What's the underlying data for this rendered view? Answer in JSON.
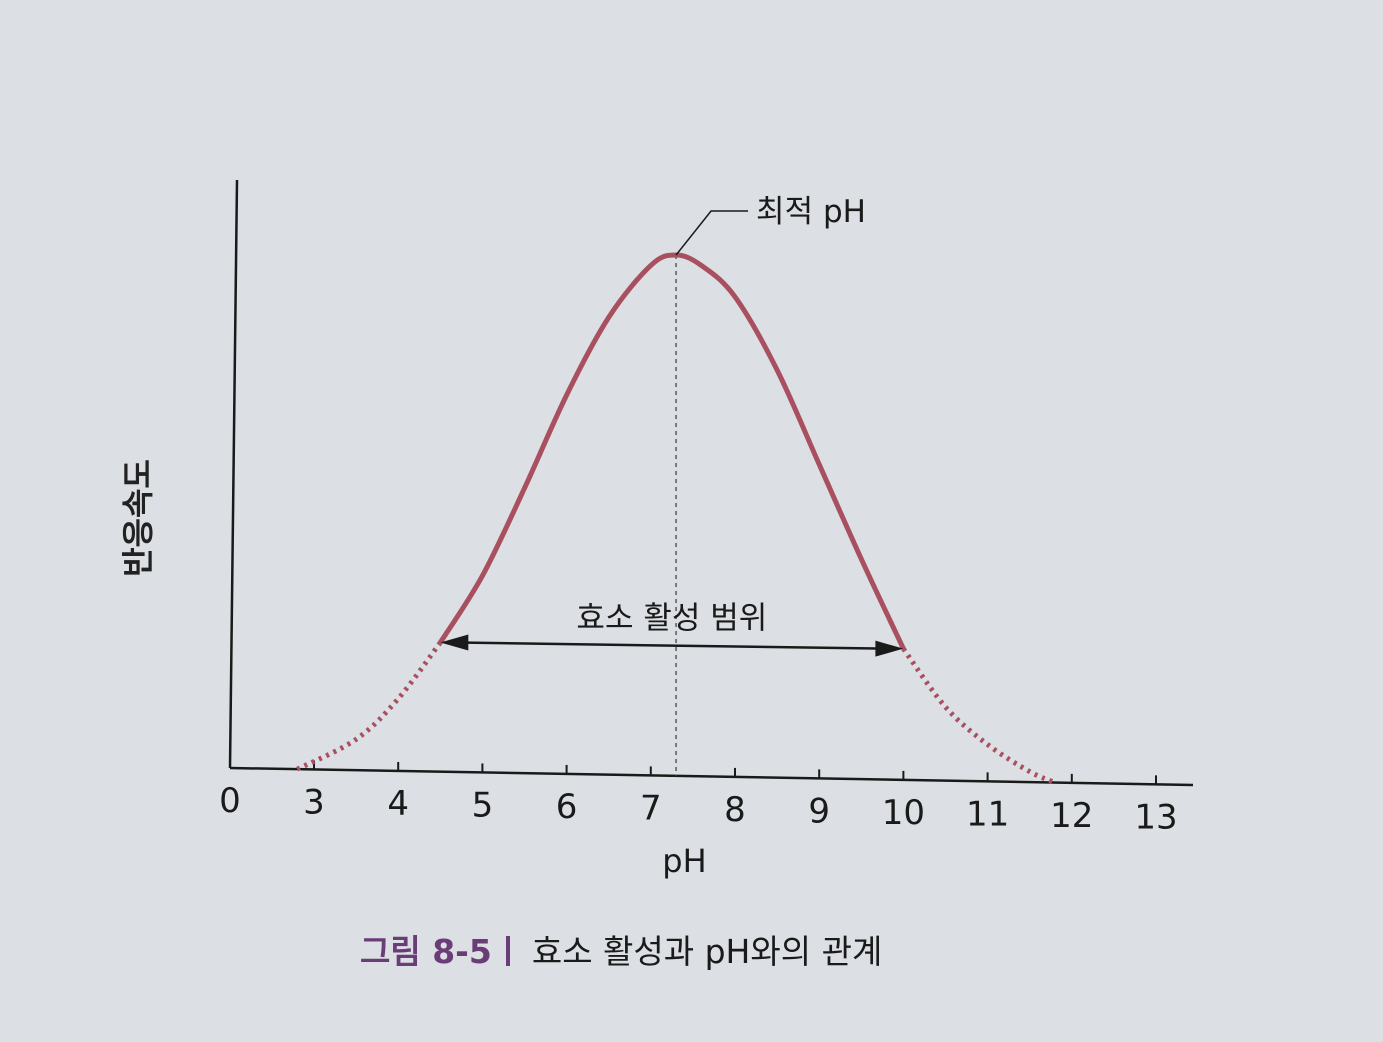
{
  "chart_data": {
    "type": "line",
    "xlabel": "pH",
    "ylabel": "반응속도",
    "x_ticks": [
      "0",
      "3",
      "4",
      "5",
      "6",
      "7",
      "8",
      "9",
      "10",
      "11",
      "12",
      "13"
    ],
    "series": [
      {
        "x": [
          2.8,
          3.5,
          4.0,
          4.5,
          5.0,
          5.5,
          6.0,
          6.5,
          7.0,
          7.3,
          7.6,
          8.0,
          8.5,
          9.0,
          9.5,
          10.0,
          10.5,
          11.0,
          11.5,
          11.8
        ],
        "y": [
          0.0,
          0.06,
          0.14,
          0.25,
          0.38,
          0.55,
          0.73,
          0.88,
          0.98,
          1.0,
          0.98,
          0.92,
          0.78,
          0.6,
          0.42,
          0.25,
          0.14,
          0.07,
          0.02,
          0.0
        ],
        "solid_range": [
          4.5,
          10.0
        ]
      }
    ],
    "optimum_x": 7.3,
    "annotations": {
      "optimum_label": "최적 pH",
      "range_label": "효소 활성 범위"
    },
    "colors": {
      "curve": "#a8505f",
      "axis": "#1a1a1a"
    }
  },
  "caption": {
    "figure_number": "그림 8-5",
    "text": "효소 활성과 pH와의 관계"
  }
}
